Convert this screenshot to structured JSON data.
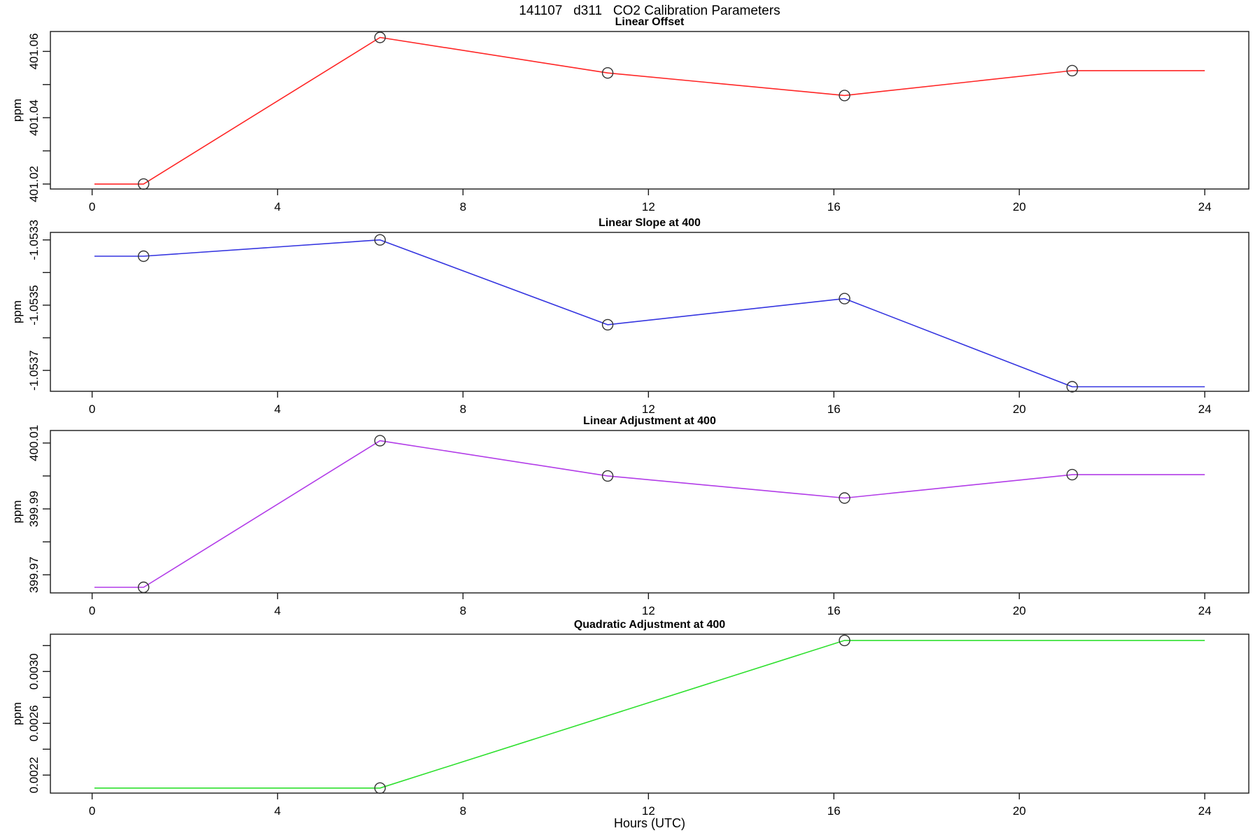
{
  "title": "141107   d311   CO2 Calibration Parameters",
  "xlabel": "Hours (UTC)",
  "marker": "open-circle",
  "marker_color": "#333333",
  "axis_color": "#1a1a1a",
  "grid": false,
  "legend": null,
  "chart_data": [
    {
      "type": "line",
      "title": "Linear Offset",
      "ylabel": "ppm",
      "color": "#ff2525",
      "x": [
        0.05,
        1.11,
        6.21,
        11.12,
        16.23,
        21.14,
        24.0
      ],
      "y": [
        401.02,
        401.02,
        401.0642,
        401.0535,
        401.0467,
        401.0542,
        401.0542
      ],
      "marker_points": [
        1,
        2,
        3,
        4,
        5
      ],
      "xlim": [
        -0.9,
        24.95
      ],
      "xticks": [
        0,
        4,
        8,
        12,
        16,
        20,
        24
      ],
      "ylim": [
        401.0185,
        401.066
      ],
      "yticks": [
        401.02,
        401.03,
        401.04,
        401.05,
        401.06
      ],
      "ytick_labels": [
        "401.02",
        "",
        "401.04",
        "",
        "401.06"
      ]
    },
    {
      "type": "line",
      "title": "Linear Slope at 400",
      "ylabel": "ppm",
      "color": "#3535e0",
      "x": [
        0.05,
        1.11,
        6.21,
        11.12,
        16.23,
        21.14,
        24.0
      ],
      "y": [
        -1.05335,
        -1.05335,
        -1.0533,
        -1.05356,
        -1.05348,
        -1.05375,
        -1.05375
      ],
      "marker_points": [
        1,
        2,
        3,
        4,
        5
      ],
      "xlim": [
        -0.9,
        24.95
      ],
      "xticks": [
        0,
        4,
        8,
        12,
        16,
        20,
        24
      ],
      "ylim": [
        -1.053764,
        -1.053277
      ],
      "yticks": [
        -1.0537,
        -1.0536,
        -1.0535,
        -1.0534,
        -1.0533
      ],
      "ytick_labels": [
        "-1.0537",
        "",
        "-1.0535",
        "",
        "-1.0533"
      ]
    },
    {
      "type": "line",
      "title": "Linear Adjustment at 400",
      "ylabel": "ppm",
      "color": "#b23ce8",
      "x": [
        0.05,
        1.11,
        6.21,
        11.12,
        16.23,
        21.14,
        24.0
      ],
      "y": [
        399.9662,
        399.9662,
        400.0107,
        400.0,
        399.9933,
        400.0004,
        400.0004
      ],
      "marker_points": [
        1,
        2,
        3,
        4,
        5
      ],
      "xlim": [
        -0.9,
        24.95
      ],
      "xticks": [
        0,
        4,
        8,
        12,
        16,
        20,
        24
      ],
      "ylim": [
        399.9645,
        400.0138
      ],
      "yticks": [
        399.97,
        399.98,
        399.99,
        400.0,
        400.01
      ],
      "ytick_labels": [
        "399.97",
        "",
        "399.99",
        "",
        "400.01"
      ]
    },
    {
      "type": "line",
      "title": "Quadratic Adjustment at 400",
      "ylabel": "ppm",
      "color": "#2ee02e",
      "x": [
        0.05,
        6.21,
        16.23,
        24.0
      ],
      "y": [
        0.0021,
        0.0021,
        0.00324,
        0.00324
      ],
      "marker_points": [
        1,
        2
      ],
      "xlim": [
        -0.9,
        24.95
      ],
      "xticks": [
        0,
        4,
        8,
        12,
        16,
        20,
        24
      ],
      "ylim": [
        0.002061,
        0.003288
      ],
      "yticks": [
        0.0022,
        0.0024,
        0.0026,
        0.0028,
        0.003,
        0.0032
      ],
      "ytick_labels": [
        "0.0022",
        "",
        "0.0026",
        "",
        "0.0030",
        ""
      ]
    }
  ]
}
